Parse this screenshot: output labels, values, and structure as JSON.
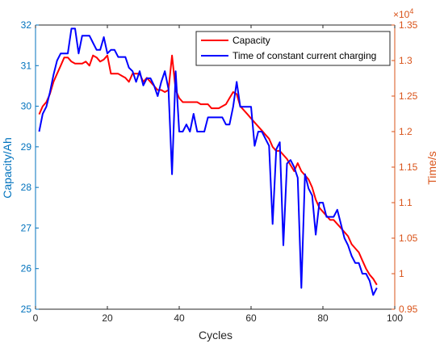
{
  "chart_data": {
    "type": "line",
    "xlabel": "Cycles",
    "ylabel_left": "Capacity/Ah",
    "ylabel_right": "Time/s",
    "right_axis_exponent_base": "×10",
    "right_axis_exponent_power": "4",
    "xlim": [
      0,
      100
    ],
    "ylim_left": [
      25,
      32
    ],
    "ylim_right": [
      0.95,
      1.35
    ],
    "right_axis_multiplier": 10000,
    "x_ticks": [
      "0",
      "20",
      "40",
      "60",
      "80",
      "100"
    ],
    "y_left_ticks": [
      "25",
      "26",
      "27",
      "28",
      "29",
      "30",
      "31",
      "32"
    ],
    "y_right_ticks": [
      "0.95",
      "1",
      "1.05",
      "1.1",
      "1.15",
      "1.2",
      "1.25",
      "1.3",
      "1.35"
    ],
    "grid": false,
    "legend_position": "top-right",
    "colors": {
      "capacity": "#ff0000",
      "time": "#0000ff",
      "left_axis": "#0072bd",
      "right_axis": "#d95319"
    },
    "series": [
      {
        "name": "Capacity",
        "axis": "left",
        "color": "#ff0000",
        "x": [
          1,
          2,
          3,
          4,
          5,
          6,
          7,
          8,
          9,
          10,
          11,
          12,
          13,
          14,
          15,
          16,
          17,
          18,
          19,
          20,
          21,
          22,
          23,
          24,
          25,
          26,
          27,
          28,
          29,
          30,
          31,
          32,
          33,
          34,
          35,
          36,
          37,
          38,
          39,
          40,
          41,
          42,
          43,
          44,
          45,
          46,
          47,
          48,
          49,
          50,
          51,
          52,
          53,
          54,
          55,
          56,
          57,
          58,
          59,
          60,
          61,
          62,
          63,
          64,
          65,
          66,
          67,
          68,
          69,
          70,
          71,
          72,
          73,
          74,
          75,
          76,
          77,
          78,
          79,
          80,
          81,
          82,
          83,
          84,
          85,
          86,
          87,
          88,
          89,
          90,
          91,
          92,
          93,
          94,
          95
        ],
        "y": [
          29.8,
          30.0,
          30.1,
          30.3,
          30.6,
          30.8,
          31.0,
          31.2,
          31.2,
          31.1,
          31.05,
          31.05,
          31.05,
          31.1,
          31.0,
          31.25,
          31.2,
          31.1,
          31.15,
          31.25,
          30.8,
          30.8,
          30.8,
          30.75,
          30.7,
          30.6,
          30.8,
          30.8,
          30.8,
          30.6,
          30.7,
          30.6,
          30.5,
          30.4,
          30.4,
          30.35,
          30.4,
          31.25,
          30.4,
          30.2,
          30.1,
          30.1,
          30.1,
          30.1,
          30.1,
          30.05,
          30.05,
          30.05,
          29.95,
          29.95,
          29.95,
          30.0,
          30.05,
          30.2,
          30.35,
          30.3,
          30.0,
          29.9,
          29.8,
          29.7,
          29.6,
          29.5,
          29.4,
          29.3,
          29.2,
          29.0,
          28.9,
          28.9,
          28.8,
          28.7,
          28.55,
          28.4,
          28.6,
          28.4,
          28.3,
          28.2,
          28.0,
          27.7,
          27.5,
          27.4,
          27.3,
          27.2,
          27.2,
          27.1,
          27.0,
          26.9,
          26.8,
          26.6,
          26.5,
          26.4,
          26.2,
          26.0,
          25.85,
          25.75,
          25.6
        ]
      },
      {
        "name": "Time of constant current charging",
        "axis": "right",
        "color": "#0000ff",
        "x": [
          1,
          2,
          3,
          4,
          5,
          6,
          7,
          8,
          9,
          10,
          11,
          12,
          13,
          14,
          15,
          16,
          17,
          18,
          19,
          20,
          21,
          22,
          23,
          24,
          25,
          26,
          27,
          28,
          29,
          30,
          31,
          32,
          33,
          34,
          35,
          36,
          37,
          38,
          39,
          40,
          41,
          42,
          43,
          44,
          45,
          46,
          47,
          48,
          49,
          50,
          51,
          52,
          53,
          54,
          55,
          56,
          57,
          58,
          59,
          60,
          61,
          62,
          63,
          64,
          65,
          66,
          67,
          68,
          69,
          70,
          71,
          72,
          73,
          74,
          75,
          76,
          77,
          78,
          79,
          80,
          81,
          82,
          83,
          84,
          85,
          86,
          87,
          88,
          89,
          90,
          91,
          92,
          93,
          94,
          95
        ],
        "y": [
          1.2,
          1.225,
          1.235,
          1.255,
          1.28,
          1.3,
          1.31,
          1.31,
          1.31,
          1.345,
          1.345,
          1.31,
          1.335,
          1.335,
          1.335,
          1.325,
          1.315,
          1.315,
          1.333,
          1.31,
          1.315,
          1.315,
          1.305,
          1.305,
          1.305,
          1.29,
          1.285,
          1.27,
          1.285,
          1.265,
          1.275,
          1.275,
          1.265,
          1.25,
          1.27,
          1.285,
          1.26,
          1.14,
          1.285,
          1.2,
          1.2,
          1.21,
          1.2,
          1.225,
          1.2,
          1.2,
          1.2,
          1.22,
          1.22,
          1.22,
          1.22,
          1.22,
          1.21,
          1.21,
          1.235,
          1.27,
          1.235,
          1.235,
          1.235,
          1.235,
          1.18,
          1.2,
          1.2,
          1.19,
          1.18,
          1.07,
          1.175,
          1.185,
          1.04,
          1.155,
          1.16,
          1.15,
          1.135,
          0.98,
          1.14,
          1.12,
          1.11,
          1.055,
          1.1,
          1.1,
          1.08,
          1.08,
          1.08,
          1.09,
          1.07,
          1.05,
          1.04,
          1.025,
          1.015,
          1.015,
          1.0,
          1.0,
          0.99,
          0.97,
          0.98
        ]
      }
    ]
  }
}
